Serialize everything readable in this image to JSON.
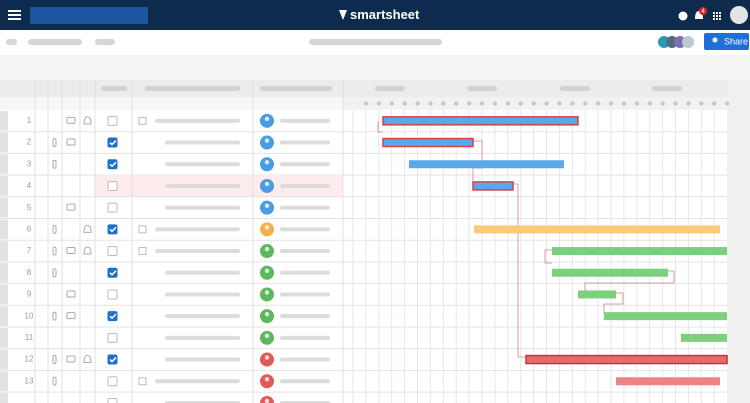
{
  "app": {
    "logo": "smartsheet",
    "notifications": 4,
    "share": "Share"
  },
  "grid": {
    "row_numbers": [
      1,
      2,
      3,
      4,
      5,
      6,
      7,
      8,
      9,
      10,
      11,
      12,
      13
    ]
  }
}
